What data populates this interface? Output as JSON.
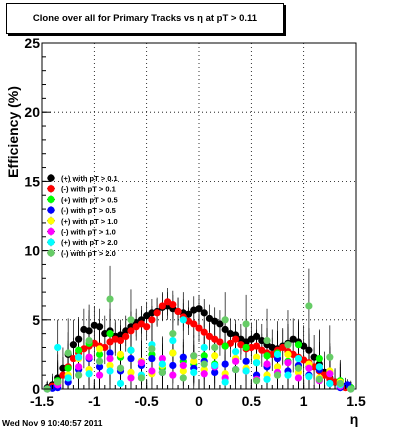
{
  "title": "Clone  over all for Primary Tracks vs   η at pT > 0.11",
  "datestamp": "Wed Nov  9 10:40:57 2011",
  "chart_data": {
    "type": "scatter",
    "xlabel": "η",
    "ylabel": "Efficiency (%)",
    "xlim": [
      -1.5,
      1.5
    ],
    "ylim": [
      0,
      25
    ],
    "x_ticks": [
      "-1.5",
      "-1",
      "-0.5",
      "0",
      "0.5",
      "1",
      "1.5"
    ],
    "y_ticks": [
      "0",
      "5",
      "10",
      "15",
      "20",
      "25"
    ],
    "grid": true,
    "legend_position": "left-middle",
    "series": [
      {
        "name": "(+) with pT > 0.1",
        "color": "#000000",
        "x": [
          -1.45,
          -1.4,
          -1.35,
          -1.3,
          -1.25,
          -1.2,
          -1.15,
          -1.1,
          -1.05,
          -1.0,
          -0.95,
          -0.9,
          -0.85,
          -0.8,
          -0.75,
          -0.7,
          -0.65,
          -0.6,
          -0.55,
          -0.5,
          -0.45,
          -0.4,
          -0.35,
          -0.3,
          -0.25,
          -0.2,
          -0.15,
          -0.1,
          -0.05,
          0.0,
          0.05,
          0.1,
          0.15,
          0.2,
          0.25,
          0.3,
          0.35,
          0.4,
          0.45,
          0.5,
          0.55,
          0.6,
          0.65,
          0.7,
          0.75,
          0.8,
          0.85,
          0.9,
          0.95,
          1.0,
          1.05,
          1.1,
          1.15,
          1.2,
          1.25,
          1.3,
          1.35,
          1.4,
          1.45
        ],
        "y": [
          0.1,
          0.3,
          0.8,
          1.5,
          2.5,
          3.2,
          3.6,
          4.3,
          4.2,
          4.6,
          4.5,
          4.0,
          4.2,
          3.8,
          3.9,
          4.2,
          4.5,
          4.8,
          5.0,
          5.3,
          5.5,
          5.6,
          5.9,
          6.0,
          5.8,
          5.6,
          5.5,
          5.4,
          5.7,
          5.8,
          5.5,
          5.1,
          4.9,
          4.7,
          4.3,
          4.0,
          3.9,
          3.6,
          3.4,
          3.6,
          3.8,
          3.5,
          3.2,
          3.0,
          2.9,
          3.1,
          3.3,
          3.6,
          3.4,
          3.1,
          2.8,
          2.3,
          1.8,
          1.2,
          0.8,
          0.5,
          0.3,
          0.2,
          0.1
        ],
        "err": [
          0.5,
          0.8,
          1.2,
          1.5,
          1.6,
          1.8,
          1.6,
          1.5,
          1.5,
          1.4,
          1.3,
          1.3,
          1.2,
          1.2,
          1.1,
          1.1,
          1.1,
          1.0,
          1.0,
          1.0,
          1.0,
          1.0,
          1.0,
          1.0,
          1.0,
          1.0,
          1.0,
          1.0,
          1.0,
          1.0,
          1.0,
          1.0,
          1.0,
          1.0,
          1.0,
          1.1,
          1.1,
          1.1,
          1.1,
          1.2,
          1.2,
          1.2,
          1.2,
          1.3,
          1.3,
          1.3,
          1.4,
          1.5,
          1.5,
          1.5,
          1.6,
          1.6,
          1.6,
          1.5,
          1.3,
          1.0,
          0.8,
          0.6,
          0.4
        ]
      },
      {
        "name": "(-) with pT > 0.1",
        "color": "#ff0000",
        "x": [
          -1.45,
          -1.4,
          -1.35,
          -1.3,
          -1.25,
          -1.2,
          -1.15,
          -1.1,
          -1.05,
          -1.0,
          -0.95,
          -0.9,
          -0.85,
          -0.8,
          -0.75,
          -0.7,
          -0.65,
          -0.6,
          -0.55,
          -0.5,
          -0.45,
          -0.4,
          -0.35,
          -0.3,
          -0.25,
          -0.2,
          -0.15,
          -0.1,
          -0.05,
          0.0,
          0.05,
          0.1,
          0.15,
          0.2,
          0.25,
          0.3,
          0.35,
          0.4,
          0.45,
          0.5,
          0.55,
          0.6,
          0.65,
          0.7,
          0.75,
          0.8,
          0.85,
          0.9,
          0.95,
          1.0,
          1.05,
          1.1,
          1.15,
          1.2,
          1.25,
          1.3,
          1.35,
          1.4,
          1.45
        ],
        "y": [
          0.0,
          0.2,
          0.5,
          1.0,
          1.6,
          2.2,
          2.6,
          2.9,
          3.1,
          3.3,
          3.1,
          3.0,
          3.4,
          3.6,
          3.5,
          3.8,
          4.2,
          4.5,
          4.7,
          4.5,
          5.0,
          5.5,
          6.0,
          6.3,
          6.1,
          5.6,
          5.2,
          4.9,
          4.7,
          4.4,
          4.1,
          3.8,
          3.6,
          3.4,
          3.1,
          3.3,
          3.6,
          3.2,
          2.9,
          3.0,
          3.1,
          2.8,
          2.6,
          2.5,
          2.8,
          3.0,
          2.7,
          2.5,
          2.3,
          2.1,
          1.9,
          1.6,
          1.3,
          1.0,
          0.7,
          0.5,
          0.3,
          0.1,
          0.0
        ],
        "err": [
          0.4,
          0.7,
          1.0,
          1.3,
          1.4,
          1.5,
          1.5,
          1.4,
          1.4,
          1.3,
          1.3,
          1.2,
          1.2,
          1.2,
          1.1,
          1.1,
          1.0,
          1.0,
          1.0,
          1.0,
          1.0,
          1.0,
          1.0,
          1.0,
          1.0,
          1.0,
          1.0,
          1.0,
          1.0,
          1.0,
          1.0,
          1.0,
          1.0,
          1.0,
          1.0,
          1.0,
          1.1,
          1.1,
          1.1,
          1.1,
          1.2,
          1.2,
          1.2,
          1.2,
          1.2,
          1.3,
          1.3,
          1.3,
          1.4,
          1.4,
          1.4,
          1.4,
          1.3,
          1.2,
          1.1,
          0.9,
          0.7,
          0.5,
          0.3
        ]
      },
      {
        "name": "(+) with pT > 0.5",
        "color": "#00ff00",
        "x": [
          -1.45,
          -1.35,
          -1.25,
          -1.15,
          -1.05,
          -0.95,
          -0.85,
          -0.75,
          -0.65,
          -0.55,
          -0.45,
          -0.35,
          -0.25,
          -0.15,
          -0.05,
          0.05,
          0.15,
          0.25,
          0.35,
          0.45,
          0.55,
          0.65,
          0.75,
          0.85,
          0.95,
          1.05,
          1.15,
          1.25,
          1.35,
          1.45
        ],
        "y": [
          0.0,
          0.6,
          1.5,
          2.8,
          3.3,
          2.5,
          4.0,
          2.3,
          2.8,
          2.0,
          2.5,
          1.5,
          2.6,
          2.0,
          1.8,
          2.4,
          1.8,
          3.1,
          2.2,
          3.0,
          1.9,
          2.4,
          2.6,
          2.0,
          3.2,
          1.6,
          2.2,
          1.1,
          0.6,
          0.1
        ],
        "err": [
          0.5,
          1.5,
          2.0,
          2.2,
          2.0,
          1.9,
          1.8,
          1.7,
          1.6,
          1.5,
          1.5,
          1.4,
          1.4,
          1.4,
          1.4,
          1.4,
          1.4,
          1.4,
          1.5,
          1.5,
          1.5,
          1.6,
          1.6,
          1.7,
          1.8,
          1.9,
          2.0,
          2.0,
          1.5,
          0.5
        ]
      },
      {
        "name": "(-) with pT > 0.5",
        "color": "#0000ff",
        "x": [
          -1.45,
          -1.4,
          -1.35,
          -1.25,
          -1.15,
          -1.05,
          -0.95,
          -0.85,
          -0.75,
          -0.65,
          -0.55,
          -0.45,
          -0.35,
          -0.25,
          -0.15,
          -0.05,
          0.05,
          0.15,
          0.25,
          0.35,
          0.45,
          0.55,
          0.65,
          0.75,
          0.85,
          0.95,
          1.05,
          1.15,
          1.25,
          1.35,
          1.42
        ],
        "y": [
          0.0,
          0.05,
          0.1,
          0.5,
          1.4,
          2.2,
          1.6,
          2.6,
          1.3,
          2.2,
          1.7,
          2.2,
          1.2,
          1.7,
          2.3,
          1.5,
          2.0,
          1.2,
          1.8,
          1.4,
          2.0,
          1.0,
          1.6,
          2.2,
          1.3,
          1.7,
          1.0,
          1.4,
          0.4,
          0.1,
          0.3
        ],
        "err": [
          0.3,
          0.3,
          0.5,
          1.5,
          2.0,
          1.8,
          1.7,
          1.6,
          1.5,
          1.5,
          1.4,
          1.4,
          1.4,
          1.3,
          1.3,
          1.3,
          1.3,
          1.3,
          1.4,
          1.4,
          1.4,
          1.5,
          1.5,
          1.6,
          1.7,
          1.8,
          1.8,
          1.8,
          1.3,
          0.6,
          0.4
        ]
      },
      {
        "name": "(+) with pT > 1.0",
        "color": "#ffff00",
        "x": [
          -1.45,
          -1.35,
          -1.25,
          -1.15,
          -1.05,
          -0.95,
          -0.85,
          -0.75,
          -0.65,
          -0.55,
          -0.45,
          -0.35,
          -0.25,
          -0.15,
          -0.05,
          0.05,
          0.15,
          0.25,
          0.35,
          0.45,
          0.55,
          0.65,
          0.75,
          0.85,
          0.95,
          1.05,
          1.15,
          1.25,
          1.35,
          1.45
        ],
        "y": [
          0.0,
          0.4,
          1.0,
          2.2,
          1.4,
          2.9,
          1.7,
          2.5,
          1.2,
          2.0,
          1.1,
          1.7,
          2.6,
          1.3,
          2.0,
          1.4,
          2.4,
          1.1,
          2.2,
          1.5,
          2.3,
          1.0,
          1.6,
          2.5,
          1.2,
          1.8,
          0.8,
          1.3,
          0.5,
          0.0
        ],
        "err": [
          0.5,
          1.5,
          2.2,
          2.4,
          2.2,
          2.1,
          2.0,
          1.9,
          1.8,
          1.7,
          1.6,
          1.6,
          1.6,
          1.5,
          1.5,
          1.5,
          1.5,
          1.6,
          1.6,
          1.6,
          1.7,
          1.8,
          1.9,
          2.0,
          2.1,
          2.2,
          2.3,
          2.0,
          1.5,
          0.5
        ]
      },
      {
        "name": "(-) with pT > 1.0",
        "color": "#ff00ff",
        "x": [
          -1.45,
          -1.35,
          -1.25,
          -1.15,
          -1.05,
          -0.95,
          -0.85,
          -0.75,
          -0.65,
          -0.55,
          -0.45,
          -0.35,
          -0.25,
          -0.15,
          -0.05,
          0.05,
          0.15,
          0.25,
          0.35,
          0.45,
          0.55,
          0.65,
          0.75,
          0.85,
          0.95,
          1.05,
          1.15,
          1.25,
          1.35,
          1.45
        ],
        "y": [
          0.0,
          0.3,
          0.8,
          1.6,
          2.3,
          1.0,
          2.2,
          1.5,
          0.8,
          1.9,
          1.3,
          2.2,
          1.0,
          1.7,
          2.4,
          1.1,
          1.6,
          0.8,
          2.0,
          1.3,
          0.7,
          1.8,
          1.2,
          1.9,
          0.8,
          1.5,
          0.6,
          1.1,
          0.2,
          0.0
        ],
        "err": [
          0.5,
          1.4,
          2.0,
          2.2,
          2.1,
          2.0,
          1.9,
          1.8,
          1.7,
          1.6,
          1.6,
          1.5,
          1.5,
          1.5,
          1.5,
          1.5,
          1.5,
          1.5,
          1.6,
          1.6,
          1.6,
          1.7,
          1.8,
          1.9,
          2.0,
          2.1,
          2.2,
          1.9,
          1.4,
          0.5
        ]
      },
      {
        "name": "(+) with pT > 2.0",
        "color": "#00ffff",
        "x": [
          -1.45,
          -1.35,
          -1.25,
          -1.15,
          -1.05,
          -0.95,
          -0.85,
          -0.75,
          -0.65,
          -0.55,
          -0.45,
          -0.35,
          -0.25,
          -0.15,
          -0.05,
          0.05,
          0.15,
          0.25,
          0.35,
          0.45,
          0.55,
          0.65,
          0.75,
          0.85,
          0.95,
          1.05,
          1.15,
          1.25,
          1.35,
          1.45
        ],
        "y": [
          0.0,
          3.0,
          0.8,
          2.3,
          1.1,
          2.0,
          1.3,
          0.4,
          2.8,
          1.0,
          3.2,
          1.8,
          3.5,
          5.0,
          1.2,
          3.0,
          1.7,
          0.5,
          2.7,
          1.3,
          1.9,
          0.7,
          2.5,
          1.0,
          2.2,
          0.9,
          1.6,
          0.4,
          0.3,
          0.0
        ],
        "err": [
          0.5,
          2.0,
          2.5,
          2.7,
          2.6,
          2.5,
          2.4,
          2.3,
          2.2,
          2.1,
          2.0,
          2.0,
          2.0,
          2.0,
          2.0,
          2.0,
          2.0,
          2.0,
          2.0,
          2.1,
          2.2,
          2.3,
          2.4,
          2.5,
          2.6,
          2.7,
          2.7,
          2.3,
          1.5,
          0.5
        ]
      },
      {
        "name": "(-) with pT > 2.0",
        "color": "#66cc66",
        "x": [
          -1.45,
          -1.35,
          -1.25,
          -1.15,
          -1.05,
          -0.95,
          -0.85,
          -0.75,
          -0.65,
          -0.55,
          -0.45,
          -0.35,
          -0.25,
          -0.15,
          -0.05,
          0.05,
          0.15,
          0.25,
          0.35,
          0.45,
          0.55,
          0.65,
          0.75,
          0.85,
          0.95,
          1.05,
          1.15,
          1.25,
          1.35,
          1.45
        ],
        "y": [
          0.0,
          0.5,
          2.6,
          1.0,
          3.5,
          2.0,
          6.5,
          1.5,
          5.0,
          0.8,
          2.9,
          1.2,
          4.0,
          0.8,
          2.4,
          1.8,
          3.0,
          5.0,
          1.4,
          4.7,
          0.6,
          3.5,
          1.0,
          3.2,
          1.5,
          6.0,
          0.7,
          2.3,
          0.4,
          0.0
        ],
        "err": [
          0.5,
          2.0,
          2.5,
          2.7,
          2.6,
          2.5,
          2.4,
          2.3,
          2.2,
          2.1,
          2.0,
          2.0,
          2.0,
          2.0,
          2.0,
          2.0,
          2.0,
          2.0,
          2.0,
          2.1,
          2.2,
          2.3,
          2.4,
          2.5,
          2.6,
          2.7,
          2.7,
          2.3,
          1.5,
          0.5
        ]
      }
    ]
  }
}
